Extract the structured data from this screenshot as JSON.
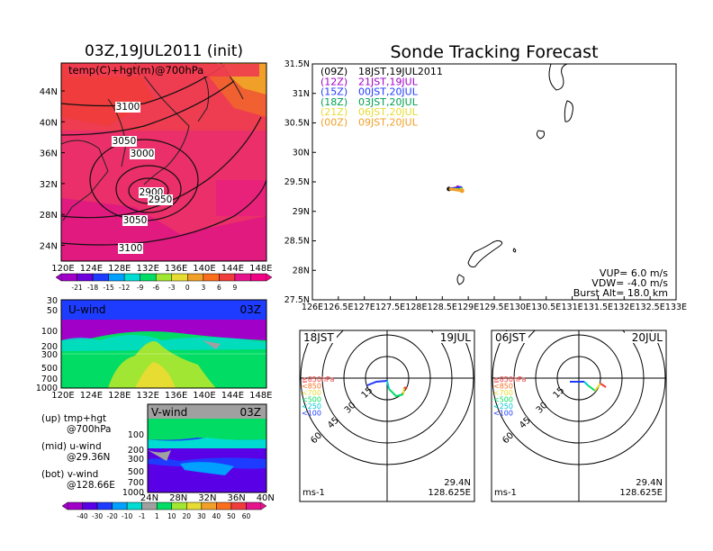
{
  "left": {
    "title": "03Z,19JUL2011 (init)",
    "map": {
      "label": "temp(C)+hgt(m)@700hPa",
      "lon_ticks": [
        "120E",
        "124E",
        "128E",
        "132E",
        "136E",
        "140E",
        "144E",
        "148E"
      ],
      "lat_ticks": [
        "44N",
        "40N",
        "36N",
        "32N",
        "28N",
        "24N"
      ],
      "contours": [
        "3100",
        "3050",
        "3000",
        "2900",
        "2950",
        "3050",
        "3100"
      ],
      "colorbar_labels": [
        "-21",
        "-18",
        "-15",
        "-12",
        "-9",
        "-6",
        "-3",
        "0",
        "3",
        "6",
        "9"
      ],
      "colorbar_colors": [
        "#a000c8",
        "#6e00dc",
        "#1e3cff",
        "#00a0ff",
        "#00dcd2",
        "#00dc64",
        "#a0e632",
        "#e6dc32",
        "#f0a028",
        "#fa6e1e",
        "#f03c3c",
        "#e6148c",
        "#f00082"
      ]
    },
    "u_panel": {
      "label": "U-wind",
      "time": "03Z",
      "p_ticks": [
        "30",
        "50",
        "100",
        "200",
        "300",
        "500",
        "700",
        "1000"
      ],
      "lon_ticks": [
        "120E",
        "124E",
        "128E",
        "132E",
        "136E",
        "140E",
        "144E",
        "148E"
      ]
    },
    "v_panel": {
      "label": "V-wind",
      "time": "03Z",
      "p_ticks": [
        "100",
        "200",
        "300",
        "500",
        "700",
        "1000"
      ],
      "lat_ticks": [
        "24N",
        "28N",
        "32N",
        "36N",
        "40N"
      ]
    },
    "notes": [
      {
        "line1": "(up) tmp+hgt",
        "line2": "@700hPa"
      },
      {
        "line1": "(mid) u-wind",
        "line2": "@29.36N"
      },
      {
        "line1": "(bot) v-wind",
        "line2": "@128.66E"
      }
    ],
    "wind_colorbar_labels": [
      "-40",
      "-30",
      "-20",
      "-10",
      "-1",
      "1",
      "10",
      "20",
      "30",
      "40",
      "50",
      "60"
    ],
    "wind_colorbar_colors": [
      "#a000c8",
      "#5a00e6",
      "#1e3cff",
      "#00a0ff",
      "#00dcd2",
      "#a0a0a0",
      "#00dc64",
      "#a0e632",
      "#e6dc32",
      "#f0a028",
      "#fa6e1e",
      "#f03c3c",
      "#e6148c"
    ]
  },
  "track": {
    "title": "Sonde Tracking Forecast",
    "legend": [
      {
        "utc": "(09Z)",
        "jst": "18JST,19JUL2011",
        "color": "#000000"
      },
      {
        "utc": "(12Z)",
        "jst": "21JST,19JUL",
        "color": "#a000c8"
      },
      {
        "utc": "(15Z)",
        "jst": "00JST,20JUL",
        "color": "#1e3cff"
      },
      {
        "utc": "(18Z)",
        "jst": "03JST,20JUL",
        "color": "#00a050"
      },
      {
        "utc": "(21Z)",
        "jst": "06JST,20JUL",
        "color": "#e6dc32"
      },
      {
        "utc": "(00Z)",
        "jst": "09JST,20JUL",
        "color": "#f0a028"
      }
    ],
    "y_ticks": [
      "31.5N",
      "31N",
      "30.5N",
      "30N",
      "29.5N",
      "29N",
      "28.5N",
      "28N",
      "27.5N"
    ],
    "x_ticks": [
      "126E",
      "126.5E",
      "127E",
      "127.5E",
      "128E",
      "128.5E",
      "129E",
      "129.5E",
      "130E",
      "130.5E",
      "131E",
      "131.5E",
      "132E",
      "132.5E",
      "133E"
    ],
    "params": {
      "vup": "VUP= 6.0 m/s",
      "vdw": "VDW= -4.0 m/s",
      "burst": "Burst Alt= 18.0 km"
    }
  },
  "hodographs": [
    {
      "left_label": "18JST",
      "right_label": "19JUL",
      "lat": "29.4N",
      "lon": "128.625E",
      "unit": "ms-1"
    },
    {
      "left_label": "06JST",
      "right_label": "20JUL",
      "lat": "29.4N",
      "lon": "128.625E",
      "unit": "ms-1"
    }
  ],
  "hodo_common": {
    "ring_labels": [
      "15",
      "30",
      "45",
      "60"
    ],
    "pressure_legend": [
      {
        "text": "≧850hPa",
        "color": "#f03c3c"
      },
      {
        "text": "<850",
        "color": "#fa6e1e"
      },
      {
        "text": "<700",
        "color": "#e6dc32"
      },
      {
        "text": "<500",
        "color": "#00dc64"
      },
      {
        "text": "<250",
        "color": "#00c8d2"
      },
      {
        "text": "<100",
        "color": "#1e3cff"
      }
    ]
  },
  "chart_data": [
    {
      "type": "line",
      "title": "Sonde Tracking Forecast",
      "xlabel": "",
      "ylabel": "",
      "xlim": [
        126,
        133
      ],
      "ylim": [
        27.5,
        31.5
      ],
      "series": [
        {
          "name": "(09Z) 18JST,19JUL2011",
          "x": [
            128.63
          ],
          "y": [
            29.38
          ]
        },
        {
          "name": "(12Z) 21JST,19JUL",
          "x": [
            128.63,
            128.8
          ],
          "y": [
            29.38,
            29.4
          ]
        },
        {
          "name": "(15Z) 00JST,20JUL",
          "x": [
            128.63,
            128.85
          ],
          "y": [
            29.38,
            29.39
          ]
        },
        {
          "name": "(18Z) 03JST,20JUL",
          "x": [
            128.63,
            128.86
          ],
          "y": [
            29.38,
            29.37
          ]
        },
        {
          "name": "(21Z) 06JST,20JUL",
          "x": [
            128.63,
            128.87
          ],
          "y": [
            29.38,
            29.36
          ]
        },
        {
          "name": "(00Z) 09JST,20JUL",
          "x": [
            128.63,
            128.88
          ],
          "y": [
            29.38,
            29.35
          ]
        }
      ]
    }
  ]
}
